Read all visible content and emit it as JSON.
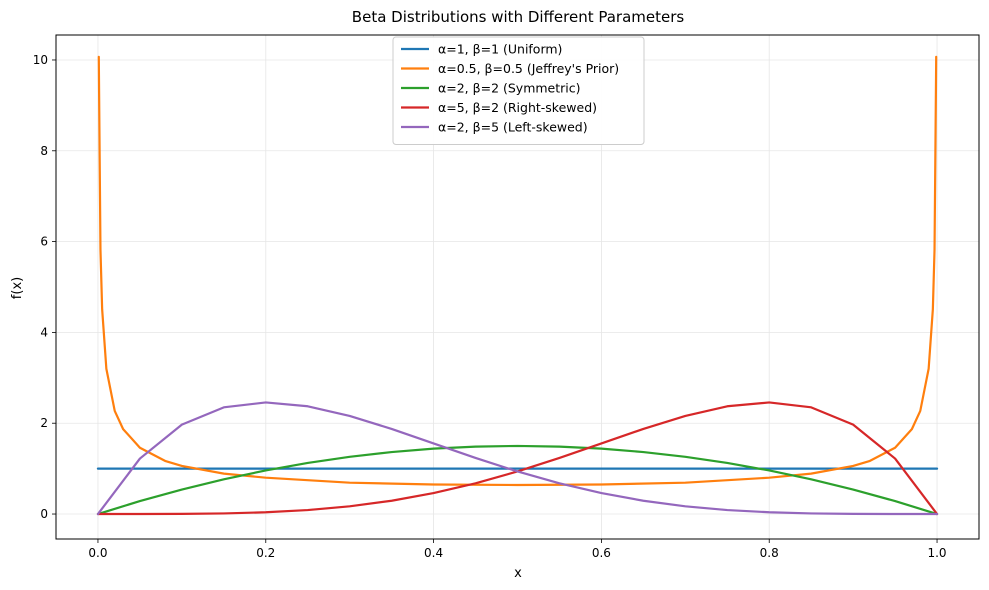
{
  "chart_data": {
    "type": "line",
    "title": "Beta Distributions with Different Parameters",
    "xlabel": "x",
    "ylabel": "f(x)",
    "xlim": [
      -0.05,
      1.05
    ],
    "ylim": [
      -0.55,
      10.55
    ],
    "xticks": [
      0.0,
      0.2,
      0.4,
      0.6,
      0.8,
      1.0
    ],
    "xtick_labels": [
      "0.0",
      "0.2",
      "0.4",
      "0.6",
      "0.8",
      "1.0"
    ],
    "yticks": [
      0,
      2,
      4,
      6,
      8,
      10
    ],
    "ytick_labels": [
      "0",
      "2",
      "4",
      "6",
      "8",
      "10"
    ],
    "grid": true,
    "legend_position": "top-center",
    "series": [
      {
        "name": "α=1, β=1 (Uniform)",
        "color": "#1f77b4",
        "x": [
          0.0,
          1.0
        ],
        "y": [
          1.0,
          1.0
        ]
      },
      {
        "name": "α=0.5, β=0.5 (Jeffrey's Prior)",
        "color": "#ff7f0e",
        "x": [
          0.001,
          0.003,
          0.005,
          0.01,
          0.02,
          0.03,
          0.05,
          0.08,
          0.1,
          0.15,
          0.2,
          0.3,
          0.4,
          0.5,
          0.6,
          0.7,
          0.8,
          0.85,
          0.9,
          0.92,
          0.95,
          0.97,
          0.98,
          0.99,
          0.995,
          0.997,
          0.999
        ],
        "y": [
          10.07,
          5.82,
          4.51,
          3.2,
          2.27,
          1.87,
          1.46,
          1.17,
          1.06,
          0.89,
          0.8,
          0.69,
          0.65,
          0.64,
          0.65,
          0.69,
          0.8,
          0.89,
          1.06,
          1.17,
          1.46,
          1.87,
          2.27,
          3.2,
          4.51,
          5.82,
          10.07
        ]
      },
      {
        "name": "α=2, β=2 (Symmetric)",
        "color": "#2ca02c",
        "x": [
          0.0,
          0.05,
          0.1,
          0.15,
          0.2,
          0.25,
          0.3,
          0.35,
          0.4,
          0.45,
          0.5,
          0.55,
          0.6,
          0.65,
          0.7,
          0.75,
          0.8,
          0.85,
          0.9,
          0.95,
          1.0
        ],
        "y": [
          0.0,
          0.285,
          0.54,
          0.765,
          0.96,
          1.125,
          1.26,
          1.365,
          1.44,
          1.485,
          1.5,
          1.485,
          1.44,
          1.365,
          1.26,
          1.125,
          0.96,
          0.765,
          0.54,
          0.285,
          0.0
        ]
      },
      {
        "name": "α=5, β=2 (Right-skewed)",
        "color": "#d62728",
        "x": [
          0.0,
          0.05,
          0.1,
          0.15,
          0.2,
          0.25,
          0.3,
          0.35,
          0.4,
          0.45,
          0.5,
          0.55,
          0.6,
          0.65,
          0.7,
          0.75,
          0.8,
          0.85,
          0.9,
          0.95,
          1.0
        ],
        "y": [
          0.0,
          0.0002,
          0.0027,
          0.0128,
          0.0384,
          0.0879,
          0.1701,
          0.2926,
          0.4608,
          0.6766,
          0.9375,
          1.2353,
          1.5552,
          1.8743,
          2.1609,
          2.373,
          2.4576,
          2.3498,
          1.9683,
          1.2217,
          0.0
        ]
      },
      {
        "name": "α=2, β=5 (Left-skewed)",
        "color": "#9467bd",
        "x": [
          0.0,
          0.05,
          0.1,
          0.15,
          0.2,
          0.25,
          0.3,
          0.35,
          0.4,
          0.45,
          0.5,
          0.55,
          0.6,
          0.65,
          0.7,
          0.75,
          0.8,
          0.85,
          0.9,
          0.95,
          1.0
        ],
        "y": [
          0.0,
          1.2217,
          1.9683,
          2.3498,
          2.4576,
          2.373,
          2.1609,
          1.8743,
          1.5552,
          1.2353,
          0.9375,
          0.6766,
          0.4608,
          0.2926,
          0.1701,
          0.0879,
          0.0384,
          0.0128,
          0.0027,
          0.0002,
          0.0
        ]
      }
    ]
  }
}
